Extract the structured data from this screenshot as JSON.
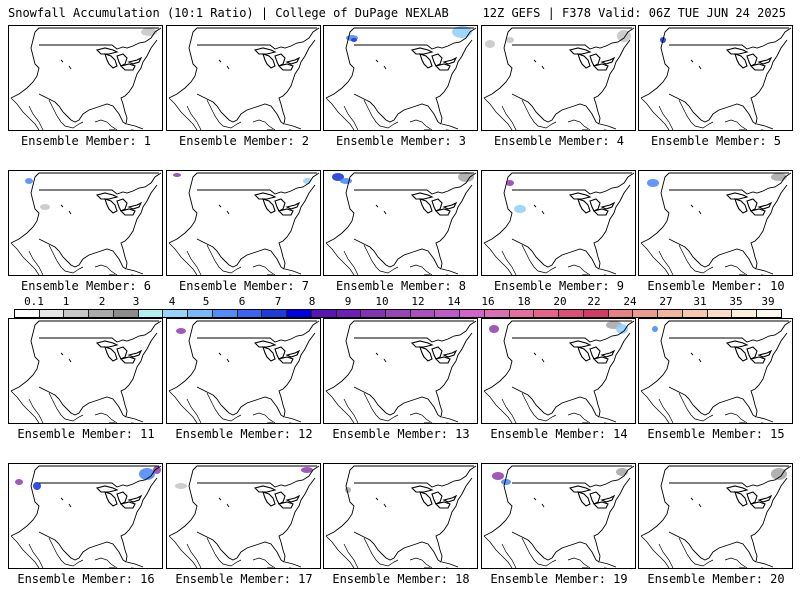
{
  "header": {
    "left": "Snowfall Accumulation (10:1 Ratio) | College of DuPage NEXLAB",
    "right": "12Z GEFS | F378 Valid: 06Z TUE JUN 24 2025"
  },
  "panels": [
    {
      "label": "Ensemble Member: 1"
    },
    {
      "label": "Ensemble Member: 2"
    },
    {
      "label": "Ensemble Member: 3"
    },
    {
      "label": "Ensemble Member: 4"
    },
    {
      "label": "Ensemble Member: 5"
    },
    {
      "label": "Ensemble Member: 6"
    },
    {
      "label": "Ensemble Member: 7"
    },
    {
      "label": "Ensemble Member: 8"
    },
    {
      "label": "Ensemble Member: 9"
    },
    {
      "label": "Ensemble Member: 10"
    },
    {
      "label": "Ensemble Member: 11"
    },
    {
      "label": "Ensemble Member: 12"
    },
    {
      "label": "Ensemble Member: 13"
    },
    {
      "label": "Ensemble Member: 14"
    },
    {
      "label": "Ensemble Member: 15"
    },
    {
      "label": "Ensemble Member: 16"
    },
    {
      "label": "Ensemble Member: 17"
    },
    {
      "label": "Ensemble Member: 18"
    },
    {
      "label": "Ensemble Member: 19"
    },
    {
      "label": "Ensemble Member: 20"
    }
  ],
  "colorbar": {
    "tick_labels": [
      "0.1",
      "1",
      "2",
      "3",
      "4",
      "5",
      "6",
      "7",
      "8",
      "9",
      "10",
      "12",
      "14",
      "16",
      "18",
      "20",
      "22",
      "24",
      "27",
      "31",
      "35",
      "39"
    ],
    "colors": [
      "#ffffff",
      "#e6e6e6",
      "#c8c8c8",
      "#aaaaaa",
      "#8c8c8c",
      "#b4f0f0",
      "#96d2fa",
      "#78b9fa",
      "#508cfa",
      "#3c64f0",
      "#1e3cdc",
      "#0000e6",
      "#5a14b4",
      "#6e1eb4",
      "#8232b4",
      "#9646b4",
      "#aa50be",
      "#be5ac8",
      "#d264c8",
      "#dc6eb4",
      "#e66ea0",
      "#e6648c",
      "#dc5078",
      "#d23c64",
      "#e68282",
      "#eb9b91",
      "#f0b4a0",
      "#f5c8b4",
      "#fadcc8",
      "#fff0dc",
      "#fff8ec"
    ]
  }
}
